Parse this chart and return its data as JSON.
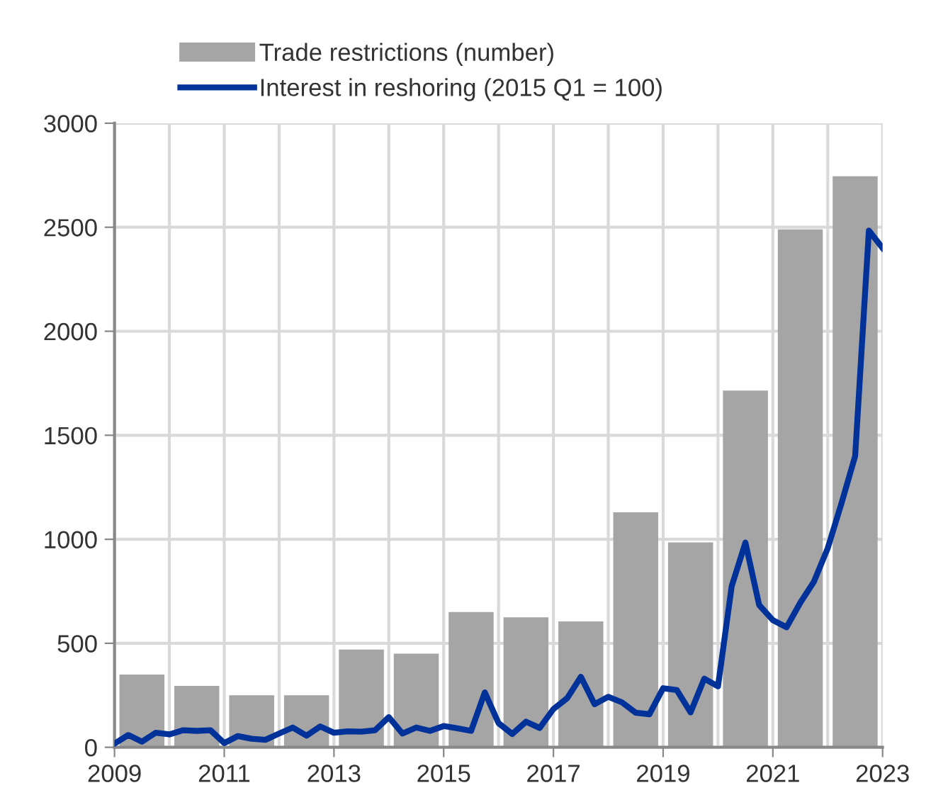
{
  "chart_data": {
    "type": "bar",
    "series": [
      {
        "name": "Trade restrictions (number)",
        "color": "#a5a5a5",
        "x": [
          2009.5,
          2010.5,
          2011.5,
          2012.5,
          2013.5,
          2014.5,
          2015.5,
          2016.5,
          2017.5,
          2018.5,
          2019.5,
          2020.5,
          2021.5,
          2022.5
        ],
        "values": [
          350,
          295,
          250,
          250,
          470,
          450,
          650,
          625,
          605,
          1130,
          985,
          1715,
          2490,
          2745
        ]
      },
      {
        "name": "Interest in reshoring (2015 Q1 = 100)",
        "type": "line",
        "color": "#003299",
        "x": [
          2009,
          2009.25,
          2009.5,
          2009.75,
          2010,
          2010.25,
          2010.5,
          2010.75,
          2011,
          2011.25,
          2011.5,
          2011.75,
          2012,
          2012.25,
          2012.5,
          2012.75,
          2013,
          2013.25,
          2013.5,
          2013.75,
          2014,
          2014.25,
          2014.5,
          2014.75,
          2015,
          2015.25,
          2015.5,
          2015.75,
          2016,
          2016.25,
          2016.5,
          2016.75,
          2017,
          2017.25,
          2017.5,
          2017.75,
          2018,
          2018.25,
          2018.5,
          2018.75,
          2019,
          2019.25,
          2019.5,
          2019.75,
          2020,
          2020.25,
          2020.5,
          2020.75,
          2021,
          2021.25,
          2021.5,
          2021.75,
          2022,
          2022.25,
          2022.5,
          2022.75,
          2023
        ],
        "values": [
          18,
          59,
          27,
          70,
          62,
          82,
          79,
          82,
          20,
          54,
          41,
          36,
          66,
          95,
          56,
          100,
          70,
          77,
          75,
          82,
          145,
          66,
          95,
          79,
          102,
          91,
          79,
          264,
          116,
          64,
          123,
          93,
          184,
          236,
          339,
          207,
          243,
          216,
          166,
          159,
          284,
          275,
          168,
          330,
          293,
          775,
          984,
          684,
          611,
          577,
          695,
          797,
          957,
          1172,
          1400,
          2484,
          2400
        ]
      }
    ],
    "xlim": [
      2009,
      2023
    ],
    "xticks": [
      2009,
      {
        "value": 2010,
        "label": null
      },
      2011,
      {
        "value": 2012,
        "label": null
      },
      2013,
      {
        "value": 2014,
        "label": null
      },
      2015,
      {
        "value": 2016,
        "label": null
      },
      2017,
      {
        "value": 2018,
        "label": null
      },
      2019,
      {
        "value": 2020,
        "label": null
      },
      2021,
      {
        "value": 2022,
        "label": null
      },
      2023
    ],
    "ylim": [
      0,
      3000
    ],
    "yticks": [
      0,
      500,
      1000,
      1500,
      2000,
      2500,
      3000
    ],
    "grid": true,
    "legend": "top",
    "line_style": "solid"
  }
}
